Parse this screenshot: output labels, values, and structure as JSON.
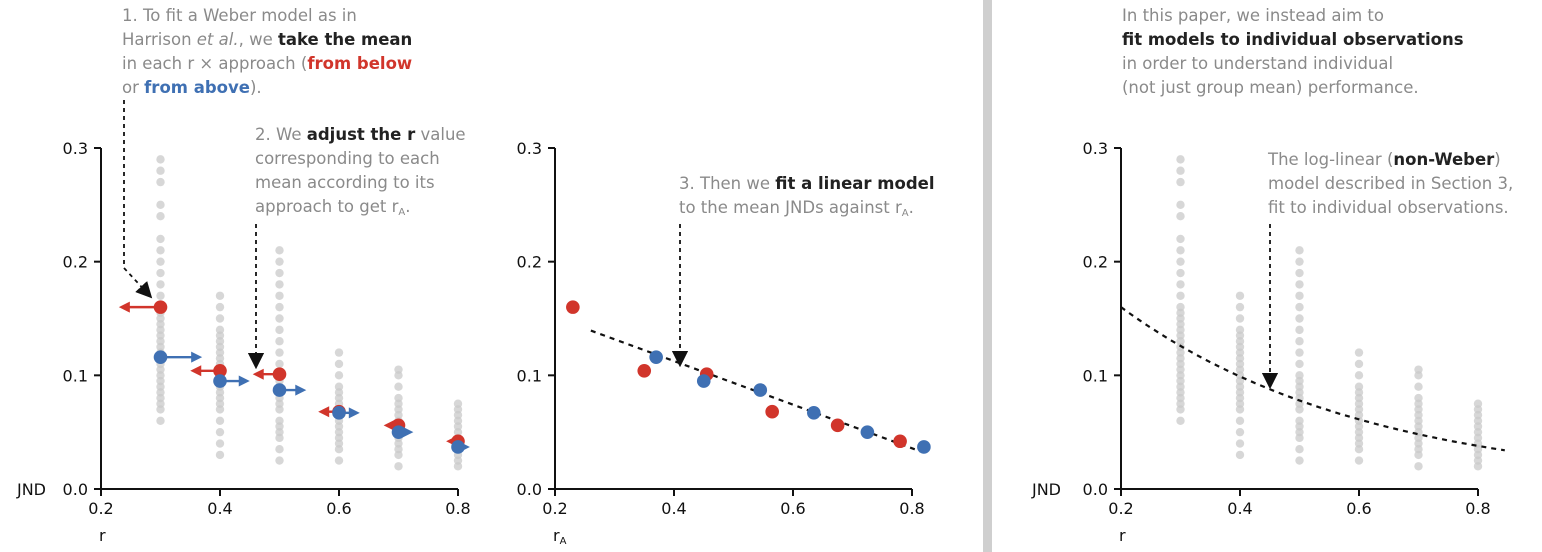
{
  "colors": {
    "red": "#d1352b",
    "blue": "#3f70b3",
    "gray": "#c9c9c9",
    "text_gray": "#8a8a8a",
    "axis": "#111111"
  },
  "annotations": {
    "a1": {
      "l1": "1. To fit a Weber model as in",
      "l2a": "Harrison ",
      "l2b": "et al.",
      "l2c": ", we ",
      "l2d": "take the mean",
      "l3a": "in each r × approach (",
      "l3b": "from below",
      "l4a": "or ",
      "l4b": "from above",
      "l4c": ")."
    },
    "a2": {
      "l1a": "2. We ",
      "l1b": "adjust the r",
      "l1c": " value",
      "l2": "corresponding to each",
      "l3": "mean according to its",
      "l4a": "approach to get r",
      "l4sub": "A",
      "l4c": "."
    },
    "a3": {
      "l1a": "3. Then we ",
      "l1b": "fit a linear model",
      "l2a": "to the mean JNDs against r",
      "l2sub": "A",
      "l2c": "."
    },
    "a4": {
      "l1": "In this paper, we instead aim to",
      "l2": "fit models to individual observations",
      "l3": "in order to understand individual",
      "l4": "(not just group mean) performance."
    },
    "a5": {
      "l1a": "The log-linear (",
      "l1b": "non-Weber",
      "l1c": ")",
      "l2": "model described in Section 3,",
      "l3": "fit to individual observations."
    }
  },
  "chart_data": [
    {
      "type": "scatter",
      "xlabel": "r",
      "ylabel": "JND",
      "xlim": [
        0.2,
        0.85
      ],
      "ylim": [
        0,
        0.3
      ],
      "xticks": [
        "0.2",
        "0.4",
        "0.6",
        "0.8"
      ],
      "yticks": [
        "0.0",
        "0.1",
        "0.2",
        "0.3"
      ],
      "individual_observations": [
        {
          "x": 0.3,
          "y": [
            0.06,
            0.07,
            0.075,
            0.08,
            0.085,
            0.09,
            0.095,
            0.1,
            0.105,
            0.11,
            0.115,
            0.12,
            0.125,
            0.13,
            0.135,
            0.14,
            0.145,
            0.15,
            0.155,
            0.16,
            0.17,
            0.18,
            0.19,
            0.2,
            0.21,
            0.22,
            0.24,
            0.25,
            0.27,
            0.28,
            0.29
          ]
        },
        {
          "x": 0.4,
          "y": [
            0.03,
            0.04,
            0.05,
            0.06,
            0.07,
            0.075,
            0.08,
            0.085,
            0.09,
            0.095,
            0.1,
            0.105,
            0.11,
            0.115,
            0.12,
            0.125,
            0.13,
            0.135,
            0.14,
            0.15,
            0.16,
            0.17
          ]
        },
        {
          "x": 0.5,
          "y": [
            0.025,
            0.035,
            0.045,
            0.05,
            0.055,
            0.06,
            0.07,
            0.075,
            0.08,
            0.085,
            0.09,
            0.095,
            0.1,
            0.11,
            0.12,
            0.13,
            0.14,
            0.15,
            0.16,
            0.17,
            0.18,
            0.19,
            0.2,
            0.21
          ]
        },
        {
          "x": 0.6,
          "y": [
            0.025,
            0.035,
            0.04,
            0.045,
            0.05,
            0.055,
            0.06,
            0.065,
            0.07,
            0.075,
            0.08,
            0.085,
            0.09,
            0.1,
            0.11,
            0.12
          ]
        },
        {
          "x": 0.7,
          "y": [
            0.02,
            0.03,
            0.035,
            0.04,
            0.045,
            0.05,
            0.055,
            0.06,
            0.065,
            0.07,
            0.075,
            0.08,
            0.09,
            0.1,
            0.105
          ]
        },
        {
          "x": 0.8,
          "y": [
            0.02,
            0.025,
            0.03,
            0.035,
            0.04,
            0.045,
            0.05,
            0.055,
            0.06,
            0.065,
            0.07,
            0.075
          ]
        }
      ],
      "means_from_below": [
        {
          "r": 0.3,
          "rA": 0.23,
          "y": 0.16
        },
        {
          "r": 0.4,
          "rA": 0.35,
          "y": 0.104
        },
        {
          "r": 0.5,
          "rA": 0.455,
          "y": 0.101
        },
        {
          "r": 0.6,
          "rA": 0.565,
          "y": 0.068
        },
        {
          "r": 0.7,
          "rA": 0.675,
          "y": 0.056
        },
        {
          "r": 0.8,
          "rA": 0.78,
          "y": 0.042
        }
      ],
      "means_from_above": [
        {
          "r": 0.3,
          "rA": 0.37,
          "y": 0.116
        },
        {
          "r": 0.4,
          "rA": 0.45,
          "y": 0.095
        },
        {
          "r": 0.5,
          "rA": 0.545,
          "y": 0.087
        },
        {
          "r": 0.6,
          "rA": 0.635,
          "y": 0.067
        },
        {
          "r": 0.7,
          "rA": 0.725,
          "y": 0.05
        },
        {
          "r": 0.8,
          "rA": 0.82,
          "y": 0.037
        }
      ]
    },
    {
      "type": "scatter",
      "xlabel": "r",
      "xlabel_sub": "A",
      "ylabel": "",
      "xlim": [
        0.2,
        0.85
      ],
      "ylim": [
        0,
        0.3
      ],
      "xticks": [
        "0.2",
        "0.4",
        "0.6",
        "0.8"
      ],
      "yticks": [
        "0.0",
        "0.1",
        "0.2",
        "0.3"
      ],
      "linear_fit": {
        "x": [
          0.23,
          0.82
        ],
        "y": [
          0.142,
          0.032
        ]
      }
    },
    {
      "type": "scatter",
      "xlabel": "r",
      "ylabel": "JND",
      "xlim": [
        0.2,
        0.85
      ],
      "ylim": [
        0,
        0.3
      ],
      "xticks": [
        "0.2",
        "0.4",
        "0.6",
        "0.8"
      ],
      "yticks": [
        "0.0",
        "0.1",
        "0.2",
        "0.3"
      ],
      "loglinear_fit": {
        "x0": 0.2,
        "y0": 0.16,
        "rate": 2.4,
        "x_end": 0.845
      }
    }
  ]
}
